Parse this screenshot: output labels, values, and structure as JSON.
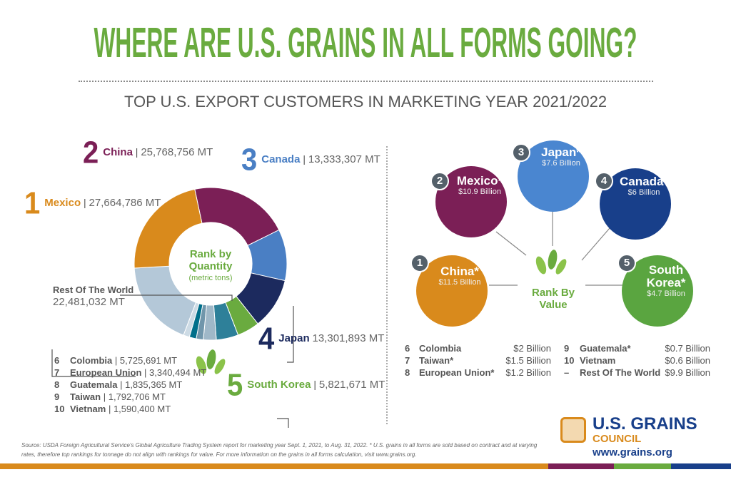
{
  "title": "WHERE ARE U.S. GRAINS IN ALL FORMS GOING?",
  "subtitle": "TOP U.S. EXPORT CUSTOMERS IN MARKETING YEAR 2021/2022",
  "chart_data": {
    "type": "pie",
    "center_title": "Rank by Quantity",
    "center_subtitle": "(metric tons)",
    "unit": "MT",
    "slices": [
      {
        "rank": "2",
        "name": "China",
        "value": 25768756,
        "label": "25,768,756 MT",
        "color": "#7b1f56"
      },
      {
        "rank": "3",
        "name": "Canada",
        "value": 13333307,
        "label": "13,333,307 MT",
        "color": "#4a7fc4"
      },
      {
        "rank": "4",
        "name": "Japan",
        "value": 13301893,
        "label": "13,301,893 MT",
        "color": "#1c2a5e"
      },
      {
        "rank": "5",
        "name": "South Korea",
        "value": 5821671,
        "label": "5,821,671 MT",
        "color": "#6aab3f"
      },
      {
        "rank": "6",
        "name": "Colombia",
        "value": 5725691,
        "label": "5,725,691 MT",
        "color": "#2e8099"
      },
      {
        "rank": "7",
        "name": "European Union",
        "value": 3340494,
        "label": "3,340,494 MT",
        "color": "#9fb8c8"
      },
      {
        "rank": "8",
        "name": "Guatemala",
        "value": 1835365,
        "label": "1,835,365 MT",
        "color": "#7096ab"
      },
      {
        "rank": "9",
        "name": "Taiwan",
        "value": 1792706,
        "label": "1,792,706 MT",
        "color": "#006f8a"
      },
      {
        "rank": "10",
        "name": "Vietnam",
        "value": 1590400,
        "label": "1,590,400 MT",
        "color": "#cddbe5"
      },
      {
        "rank": "",
        "name": "Rest Of The World",
        "value": 22481032,
        "label": "22,481,032  MT",
        "color": "#b4c8d8"
      },
      {
        "rank": "1",
        "name": "Mexico",
        "value": 27664786,
        "label": "27,664,786 MT",
        "color": "#d98a1c"
      }
    ]
  },
  "value_rank": {
    "center_title": "Rank By Value",
    "top": [
      {
        "rank": "1",
        "name": "China*",
        "value": "$11.5 Billion",
        "color": "#d98a1c"
      },
      {
        "rank": "2",
        "name": "Mexico*",
        "value": "$10.9 Billion",
        "color": "#7b1f56"
      },
      {
        "rank": "3",
        "name": "Japan*",
        "value": "$7.6 Billion",
        "color": "#4a86d0"
      },
      {
        "rank": "4",
        "name": "Canada*",
        "value": "$6 Billion",
        "color": "#183f8a"
      },
      {
        "rank": "5",
        "name": "South Korea*",
        "value": "$4.7 Billion",
        "color": "#5aa540"
      }
    ],
    "rest": [
      {
        "rank": "6",
        "name": "Colombia",
        "value": "$2 Billion"
      },
      {
        "rank": "7",
        "name": "Taiwan*",
        "value": "$1.5 Billion"
      },
      {
        "rank": "8",
        "name": "European Union*",
        "value": "$1.2 Billion"
      },
      {
        "rank": "9",
        "name": "Guatemala*",
        "value": "$0.7 Billion"
      },
      {
        "rank": "10",
        "name": "Vietnam",
        "value": "$0.6 Billion"
      },
      {
        "rank": "–",
        "name": "Rest Of The World",
        "value": "$9.9 Billion"
      }
    ]
  },
  "footnote": "Source: USDA Foreign Agricultural Service's Global Agriculture Trading System report for marketing year Sept. 1, 2021, to Aug. 31, 2022. * U.S. grains in all forms are sold based on contract and at varying rates, therefore top rankings for tonnage do not align with rankings for value. For more information on the grains in all forms calculation, visit www.grains.org.",
  "logo": {
    "line1": "U.S. GRAINS",
    "line2": "COUNCIL",
    "url": "www.grains.org"
  },
  "bar_colors": [
    "#d98a1c",
    "#7b1f56",
    "#6aab3f",
    "#183f8a"
  ]
}
